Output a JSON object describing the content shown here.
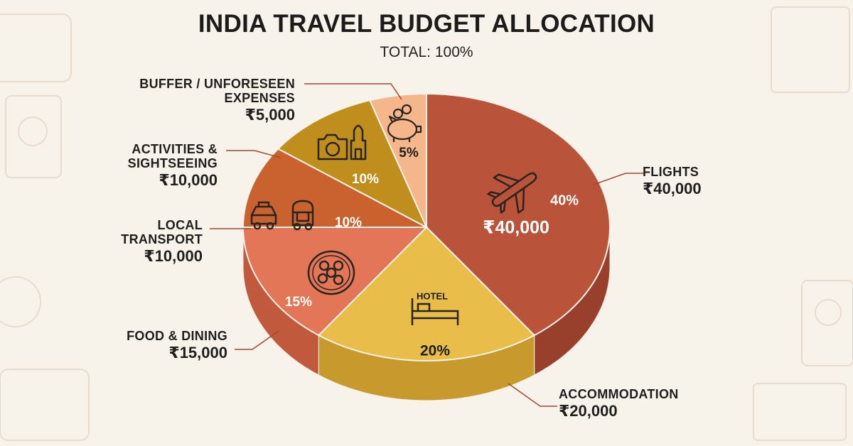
{
  "title": "INDIA TRAVEL BUDGET ALLOCATION",
  "subtitle": "TOTAL: 100%",
  "chart_data": {
    "type": "pie",
    "title": "INDIA TRAVEL BUDGET ALLOCATION",
    "subtitle": "TOTAL: 100%",
    "slices": [
      {
        "label_lines": [
          "FLIGHTS"
        ],
        "percent": 40,
        "percent_label": "40%",
        "amount_label": "₹40,000",
        "inner_amount_label": "₹40,000",
        "color": "#b9533a",
        "side_color": "#98402c",
        "icon": "airplane-icon"
      },
      {
        "label_lines": [
          "ACCOMMODATION"
        ],
        "percent": 20,
        "percent_label": "20%",
        "amount_label": "₹20,000",
        "inner_label": "HOTEL",
        "color": "#e8bd4a",
        "side_color": "#c89a2e",
        "icon": "bed-icon"
      },
      {
        "label_lines": [
          "FOOD & DINING"
        ],
        "percent": 15,
        "percent_label": "15%",
        "amount_label": "₹15,000",
        "color": "#e27656",
        "side_color": "#c1593d",
        "icon": "food-plate-icon"
      },
      {
        "label_lines": [
          "LOCAL",
          "TRANSPORT"
        ],
        "percent": 10,
        "percent_label": "10%",
        "amount_label": "₹10,000",
        "color": "#c9622e",
        "side_color": "#a84d22",
        "icon": "taxi-rickshaw-icon"
      },
      {
        "label_lines": [
          "ACTIVITIES &",
          "SIGHTSEEING"
        ],
        "percent": 10,
        "percent_label": "10%",
        "amount_label": "₹10,000",
        "color": "#bf8e1c",
        "side_color": "#9d7314",
        "icon": "camera-monument-icon"
      },
      {
        "label_lines": [
          "BUFFER / UNFORESEEN",
          "EXPENSES"
        ],
        "percent": 5,
        "percent_label": "5%",
        "amount_label": "₹5,000",
        "color": "#f5b68c",
        "side_color": "#dc9a70",
        "icon": "piggy-bank-icon"
      }
    ]
  }
}
